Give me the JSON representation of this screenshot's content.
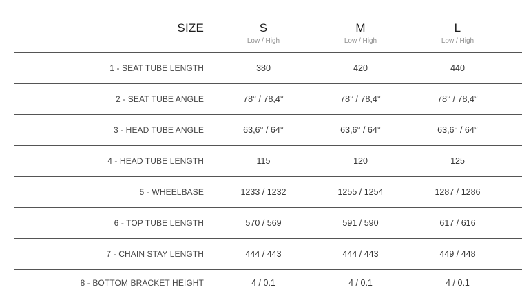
{
  "colors": {
    "background": "#ffffff",
    "divider_line": "#555555",
    "header_text": "#1d1d1d",
    "sub_header_text": "#909090",
    "row_label_text": "#454545",
    "value_text": "#373737"
  },
  "header": {
    "size_label": "SIZE",
    "column_labels": [
      "S",
      "M",
      "L"
    ],
    "sub_label": "Low / High"
  },
  "chart_data": {
    "type": "table",
    "title": "Bike geometry size table",
    "columns": [
      "SIZE",
      "S (Low / High)",
      "M (Low / High)",
      "L (Low / High)"
    ],
    "rows": [
      [
        "1 - SEAT TUBE LENGTH",
        "380",
        "420",
        "440"
      ],
      [
        "2 - SEAT TUBE ANGLE",
        "78° / 78,4°",
        "78° / 78,4°",
        "78° / 78,4°"
      ],
      [
        "3 - HEAD TUBE ANGLE",
        "63,6° / 64°",
        "63,6° / 64°",
        "63,6° / 64°"
      ],
      [
        "4 - HEAD TUBE LENGTH",
        "115",
        "120",
        "125"
      ],
      [
        "5 - WHEELBASE",
        "1233 / 1232",
        "1255 / 1254",
        "1287 / 1286"
      ],
      [
        "6 - TOP TUBE LENGTH",
        "570 / 569",
        "591 / 590",
        "617 / 616"
      ],
      [
        "7 - CHAIN STAY LENGTH",
        "444 / 443",
        "444 / 443",
        "449 / 448"
      ],
      [
        "8 - BOTTOM BRACKET HEIGHT",
        "4 / 0.1",
        "4 / 0.1",
        "4 / 0.1"
      ]
    ],
    "layout": {
      "grid": "horizontal dividers only",
      "label_column_alignment": "right",
      "value_column_alignment": "center"
    }
  }
}
